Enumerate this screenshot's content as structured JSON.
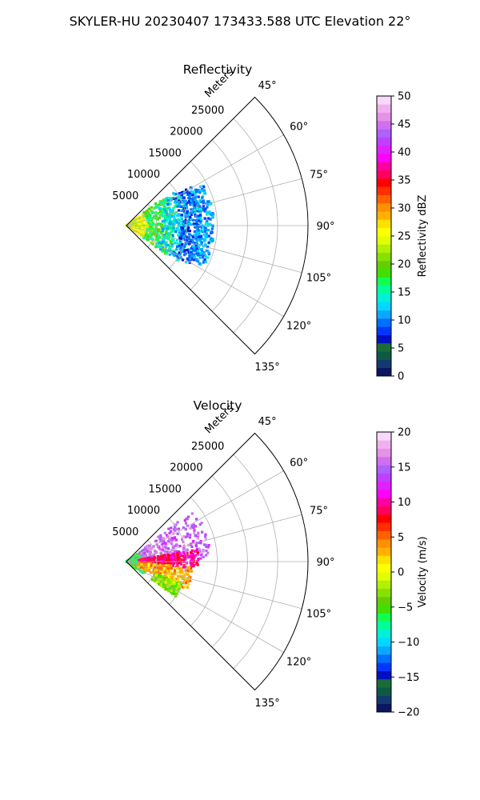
{
  "figure_title": "SKYLER-HU  20230407  173433.588 UTC Elevation 22°",
  "chart_data": [
    {
      "type": "heatmap",
      "subtype": "polar-sector-ppi",
      "title": "Reflectivity",
      "radial_axis_label": "Meters",
      "radial_ticks": [
        5000,
        10000,
        15000,
        20000,
        25000
      ],
      "radial_tick_labels": [
        "5000",
        "10000",
        "15000",
        "20000",
        "25000"
      ],
      "radial_max": 30000,
      "azimuth_range_deg": [
        45,
        135
      ],
      "azimuth_ticks_deg": [
        45,
        60,
        75,
        90,
        105,
        120,
        135
      ],
      "azimuth_tick_labels": [
        "45°",
        "60°",
        "75°",
        "90°",
        "105°",
        "120°",
        "135°"
      ],
      "echo_extent_m": {
        "min_range": 0,
        "max_range": 14500,
        "min_az": 52,
        "max_az": 128
      },
      "colorbar": {
        "label": "Reflectivity dBZ",
        "range": [
          0,
          50
        ],
        "ticks": [
          0,
          5,
          10,
          15,
          20,
          25,
          30,
          35,
          40,
          45,
          50
        ],
        "tick_labels": [
          "0",
          "5",
          "10",
          "15",
          "20",
          "25",
          "30",
          "35",
          "40",
          "45",
          "50"
        ],
        "colors": [
          "#0b1560",
          "#133a70",
          "#0d5a44",
          "#1a6d36",
          "#0010c0",
          "#0038ff",
          "#0070ff",
          "#0aa8ff",
          "#00d8ff",
          "#00f0d8",
          "#00ff9a",
          "#10ff50",
          "#40e000",
          "#60d000",
          "#88e000",
          "#b0f000",
          "#e0ff00",
          "#ffff00",
          "#ffe000",
          "#ffb000",
          "#ff9000",
          "#ff6000",
          "#ff3000",
          "#ff0000",
          "#ff0060",
          "#ff00a0",
          "#ff00ff",
          "#e020ff",
          "#c040ff",
          "#b060ff",
          "#d070f0",
          "#e890e8",
          "#f0b0f0",
          "#f8d8f8"
        ]
      },
      "echo_regions": [
        {
          "r": [
            0,
            4500
          ],
          "az": [
            55,
            125
          ],
          "value": 25
        },
        {
          "r": [
            3500,
            8000
          ],
          "az": [
            53,
            127
          ],
          "value": 18
        },
        {
          "r": [
            6000,
            10500
          ],
          "az": [
            55,
            125
          ],
          "value": 13
        },
        {
          "r": [
            9000,
            12500
          ],
          "az": [
            58,
            122
          ],
          "value": 9
        },
        {
          "r": [
            11500,
            14500
          ],
          "az": [
            62,
            118
          ],
          "value": 11
        }
      ]
    },
    {
      "type": "heatmap",
      "subtype": "polar-sector-ppi",
      "title": "Velocity",
      "radial_axis_label": "Meters",
      "radial_ticks": [
        5000,
        10000,
        15000,
        20000,
        25000
      ],
      "radial_tick_labels": [
        "5000",
        "10000",
        "15000",
        "20000",
        "25000"
      ],
      "radial_max": 30000,
      "azimuth_range_deg": [
        45,
        135
      ],
      "azimuth_ticks_deg": [
        45,
        60,
        75,
        90,
        105,
        120,
        135
      ],
      "azimuth_tick_labels": [
        "45°",
        "60°",
        "75°",
        "90°",
        "105°",
        "120°",
        "135°"
      ],
      "echo_extent_m": {
        "min_range": 0,
        "max_range": 14500,
        "min_az": 52,
        "max_az": 128
      },
      "colorbar": {
        "label": "Velocity (m/s)",
        "range": [
          -20,
          20
        ],
        "ticks": [
          -20,
          -15,
          -10,
          -5,
          0,
          5,
          10,
          15,
          20
        ],
        "tick_labels": [
          "−20",
          "−15",
          "−10",
          "−5",
          "0",
          "5",
          "10",
          "15",
          "20"
        ],
        "colors": [
          "#0b1560",
          "#133a70",
          "#0d5a44",
          "#1a6d36",
          "#0010c0",
          "#0038ff",
          "#0070ff",
          "#0aa8ff",
          "#00d8ff",
          "#00f0d8",
          "#00ff9a",
          "#10ff50",
          "#40e000",
          "#60d000",
          "#88e000",
          "#b0f000",
          "#e0ff00",
          "#ffff00",
          "#ffe000",
          "#ffb000",
          "#ff9000",
          "#ff6000",
          "#ff3000",
          "#ff0000",
          "#ff0060",
          "#ff00a0",
          "#ff00ff",
          "#e020ff",
          "#c040ff",
          "#b060ff",
          "#d070f0",
          "#e890e8",
          "#f0b0f0",
          "#f8d8f8"
        ]
      },
      "echo_regions": [
        {
          "r": [
            0,
            3500
          ],
          "az": [
            55,
            125
          ],
          "value": -6
        },
        {
          "r": [
            2500,
            14000
          ],
          "az": [
            52,
            88
          ],
          "value": 15
        },
        {
          "r": [
            2000,
            12000
          ],
          "az": [
            80,
            97
          ],
          "value": 9
        },
        {
          "r": [
            2000,
            11000
          ],
          "az": [
            95,
            115
          ],
          "value": 3
        },
        {
          "r": [
            5000,
            10000
          ],
          "az": [
            112,
            125
          ],
          "value": -3
        }
      ]
    }
  ]
}
